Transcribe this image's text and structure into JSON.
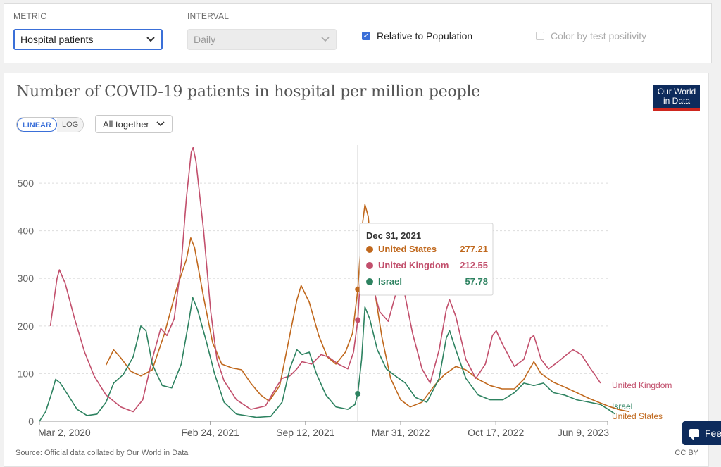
{
  "controls": {
    "metric_label": "METRIC",
    "metric_value": "Hospital patients",
    "interval_label": "INTERVAL",
    "interval_value": "Daily",
    "relative_label": "Relative to Population",
    "relative_checked": true,
    "positivity_label": "Color by test positivity",
    "positivity_checked": false
  },
  "header": {
    "title": "Number of COVID-19 patients in hospital per million people",
    "logo_line1": "Our World",
    "logo_line2": "in Data",
    "scale_linear": "LINEAR",
    "scale_log": "LOG",
    "grouping": "All together"
  },
  "colors": {
    "United States": "#c0681d",
    "United Kingdom": "#c24f6c",
    "Israel": "#2d8260",
    "grid": "#dddddd",
    "accent": "#3a6fd8"
  },
  "chart_data": {
    "type": "line",
    "title": "Number of COVID-19 patients in hospital per million people",
    "y_ticks": [
      0,
      100,
      200,
      300,
      400,
      500
    ],
    "ylim": [
      0,
      580
    ],
    "x_tick_labels": [
      "Mar 2, 2020",
      "Feb 24, 2021",
      "Sep 12, 2021",
      "Mar 31, 2022",
      "Oct 17, 2022",
      "Jun 9, 2023"
    ],
    "x_ticks": [
      "2020-03-02",
      "2021-02-24",
      "2021-09-12",
      "2022-03-31",
      "2022-10-17",
      "2023-06-09"
    ],
    "xlim": [
      "2020-03-02",
      "2023-06-09"
    ],
    "grid": "horizontal dashed",
    "series": [
      {
        "name": "United States",
        "points": [
          [
            "2020-07-20",
            118
          ],
          [
            "2020-08-05",
            150
          ],
          [
            "2020-08-20",
            133
          ],
          [
            "2020-09-10",
            105
          ],
          [
            "2020-10-01",
            95
          ],
          [
            "2020-10-25",
            108
          ],
          [
            "2020-11-20",
            185
          ],
          [
            "2020-12-15",
            278
          ],
          [
            "2021-01-05",
            340
          ],
          [
            "2021-01-14",
            385
          ],
          [
            "2021-01-22",
            365
          ],
          [
            "2021-02-10",
            260
          ],
          [
            "2021-03-01",
            165
          ],
          [
            "2021-03-20",
            120
          ],
          [
            "2021-04-10",
            112
          ],
          [
            "2021-05-01",
            108
          ],
          [
            "2021-05-20",
            80
          ],
          [
            "2021-06-10",
            55
          ],
          [
            "2021-06-28",
            42
          ],
          [
            "2021-07-20",
            75
          ],
          [
            "2021-08-10",
            180
          ],
          [
            "2021-08-25",
            255
          ],
          [
            "2021-09-03",
            285
          ],
          [
            "2021-09-20",
            250
          ],
          [
            "2021-10-10",
            180
          ],
          [
            "2021-10-28",
            135
          ],
          [
            "2021-11-15",
            120
          ],
          [
            "2021-12-05",
            145
          ],
          [
            "2021-12-20",
            185
          ],
          [
            "2021-12-31",
            277
          ],
          [
            "2022-01-08",
            400
          ],
          [
            "2022-01-15",
            455
          ],
          [
            "2022-01-22",
            430
          ],
          [
            "2022-02-05",
            270
          ],
          [
            "2022-02-20",
            175
          ],
          [
            "2022-03-10",
            90
          ],
          [
            "2022-03-31",
            45
          ],
          [
            "2022-04-20",
            30
          ],
          [
            "2022-05-15",
            40
          ],
          [
            "2022-06-10",
            75
          ],
          [
            "2022-07-01",
            98
          ],
          [
            "2022-07-25",
            115
          ],
          [
            "2022-08-15",
            108
          ],
          [
            "2022-09-10",
            88
          ],
          [
            "2022-10-05",
            75
          ],
          [
            "2022-10-30",
            68
          ],
          [
            "2022-11-25",
            68
          ],
          [
            "2022-12-15",
            88
          ],
          [
            "2023-01-05",
            125
          ],
          [
            "2023-01-20",
            100
          ],
          [
            "2023-02-15",
            82
          ],
          [
            "2023-03-10",
            72
          ],
          [
            "2023-04-05",
            60
          ],
          [
            "2023-05-01",
            48
          ],
          [
            "2023-05-25",
            38
          ],
          [
            "2023-06-15",
            30
          ],
          [
            "2023-07-05",
            24
          ],
          [
            "2023-07-25",
            20
          ]
        ]
      },
      {
        "name": "United Kingdom",
        "points": [
          [
            "2020-03-25",
            200
          ],
          [
            "2020-04-08",
            300
          ],
          [
            "2020-04-13",
            318
          ],
          [
            "2020-04-25",
            290
          ],
          [
            "2020-05-15",
            215
          ],
          [
            "2020-06-05",
            145
          ],
          [
            "2020-06-25",
            95
          ],
          [
            "2020-07-20",
            55
          ],
          [
            "2020-08-20",
            30
          ],
          [
            "2020-09-15",
            20
          ],
          [
            "2020-10-05",
            45
          ],
          [
            "2020-10-25",
            130
          ],
          [
            "2020-11-12",
            195
          ],
          [
            "2020-11-25",
            180
          ],
          [
            "2020-12-10",
            215
          ],
          [
            "2020-12-25",
            330
          ],
          [
            "2021-01-05",
            470
          ],
          [
            "2021-01-15",
            565
          ],
          [
            "2021-01-19",
            575
          ],
          [
            "2021-01-25",
            545
          ],
          [
            "2021-02-10",
            400
          ],
          [
            "2021-02-25",
            230
          ],
          [
            "2021-03-10",
            130
          ],
          [
            "2021-03-25",
            85
          ],
          [
            "2021-04-20",
            45
          ],
          [
            "2021-05-20",
            25
          ],
          [
            "2021-06-20",
            32
          ],
          [
            "2021-07-15",
            75
          ],
          [
            "2021-07-25",
            90
          ],
          [
            "2021-08-10",
            95
          ],
          [
            "2021-08-25",
            110
          ],
          [
            "2021-09-05",
            125
          ],
          [
            "2021-09-25",
            120
          ],
          [
            "2021-10-15",
            140
          ],
          [
            "2021-10-30",
            135
          ],
          [
            "2021-11-20",
            120
          ],
          [
            "2021-12-10",
            110
          ],
          [
            "2021-12-22",
            145
          ],
          [
            "2021-12-31",
            213
          ],
          [
            "2022-01-07",
            330
          ],
          [
            "2022-01-12",
            345
          ],
          [
            "2022-01-25",
            305
          ],
          [
            "2022-02-15",
            230
          ],
          [
            "2022-03-05",
            210
          ],
          [
            "2022-03-20",
            265
          ],
          [
            "2022-03-31",
            285
          ],
          [
            "2022-04-08",
            270
          ],
          [
            "2022-04-25",
            185
          ],
          [
            "2022-05-15",
            110
          ],
          [
            "2022-06-01",
            80
          ],
          [
            "2022-06-20",
            150
          ],
          [
            "2022-07-05",
            235
          ],
          [
            "2022-07-12",
            255
          ],
          [
            "2022-07-25",
            220
          ],
          [
            "2022-08-15",
            130
          ],
          [
            "2022-09-05",
            90
          ],
          [
            "2022-09-25",
            120
          ],
          [
            "2022-10-10",
            180
          ],
          [
            "2022-10-18",
            190
          ],
          [
            "2022-11-01",
            160
          ],
          [
            "2022-11-25",
            115
          ],
          [
            "2022-12-15",
            130
          ],
          [
            "2022-12-29",
            175
          ],
          [
            "2023-01-05",
            180
          ],
          [
            "2023-01-20",
            130
          ],
          [
            "2023-02-05",
            110
          ],
          [
            "2023-02-25",
            125
          ],
          [
            "2023-03-15",
            140
          ],
          [
            "2023-03-28",
            150
          ],
          [
            "2023-04-15",
            140
          ],
          [
            "2023-05-01",
            115
          ],
          [
            "2023-05-15",
            95
          ],
          [
            "2023-05-25",
            80
          ]
        ]
      },
      {
        "name": "Israel",
        "points": [
          [
            "2020-03-02",
            0
          ],
          [
            "2020-03-15",
            20
          ],
          [
            "2020-03-28",
            60
          ],
          [
            "2020-04-05",
            88
          ],
          [
            "2020-04-15",
            80
          ],
          [
            "2020-05-01",
            55
          ],
          [
            "2020-05-20",
            25
          ],
          [
            "2020-06-10",
            12
          ],
          [
            "2020-07-01",
            15
          ],
          [
            "2020-07-20",
            40
          ],
          [
            "2020-08-05",
            80
          ],
          [
            "2020-08-25",
            98
          ],
          [
            "2020-09-15",
            135
          ],
          [
            "2020-10-01",
            200
          ],
          [
            "2020-10-12",
            190
          ],
          [
            "2020-10-25",
            120
          ],
          [
            "2020-11-15",
            75
          ],
          [
            "2020-12-05",
            70
          ],
          [
            "2020-12-25",
            120
          ],
          [
            "2021-01-10",
            210
          ],
          [
            "2021-01-18",
            260
          ],
          [
            "2021-01-28",
            235
          ],
          [
            "2021-02-15",
            170
          ],
          [
            "2021-03-05",
            100
          ],
          [
            "2021-03-25",
            40
          ],
          [
            "2021-04-20",
            15
          ],
          [
            "2021-06-01",
            8
          ],
          [
            "2021-07-01",
            10
          ],
          [
            "2021-07-25",
            40
          ],
          [
            "2021-08-10",
            110
          ],
          [
            "2021-08-25",
            150
          ],
          [
            "2021-09-05",
            140
          ],
          [
            "2021-09-20",
            145
          ],
          [
            "2021-10-05",
            100
          ],
          [
            "2021-10-25",
            55
          ],
          [
            "2021-11-15",
            30
          ],
          [
            "2021-12-10",
            25
          ],
          [
            "2021-12-25",
            35
          ],
          [
            "2021-12-31",
            58
          ],
          [
            "2022-01-08",
            130
          ],
          [
            "2022-01-15",
            240
          ],
          [
            "2022-01-25",
            215
          ],
          [
            "2022-02-10",
            150
          ],
          [
            "2022-03-01",
            110
          ],
          [
            "2022-03-20",
            95
          ],
          [
            "2022-04-10",
            80
          ],
          [
            "2022-05-01",
            50
          ],
          [
            "2022-05-25",
            40
          ],
          [
            "2022-06-20",
            90
          ],
          [
            "2022-07-05",
            175
          ],
          [
            "2022-07-12",
            190
          ],
          [
            "2022-07-25",
            150
          ],
          [
            "2022-08-15",
            90
          ],
          [
            "2022-09-10",
            55
          ],
          [
            "2022-10-05",
            45
          ],
          [
            "2022-11-01",
            45
          ],
          [
            "2022-11-25",
            60
          ],
          [
            "2022-12-15",
            80
          ],
          [
            "2023-01-05",
            75
          ],
          [
            "2023-01-25",
            80
          ],
          [
            "2023-02-15",
            60
          ],
          [
            "2023-03-10",
            55
          ],
          [
            "2023-04-05",
            45
          ],
          [
            "2023-05-01",
            40
          ],
          [
            "2023-05-25",
            35
          ],
          [
            "2023-06-10",
            25
          ],
          [
            "2023-06-25",
            15
          ]
        ]
      }
    ],
    "hover": {
      "date": "2021-12-31",
      "label": "Dec 31, 2021",
      "values": [
        {
          "name": "United States",
          "value": "277.21"
        },
        {
          "name": "United Kingdom",
          "value": "212.55"
        },
        {
          "name": "Israel",
          "value": "57.78"
        }
      ]
    },
    "end_labels": [
      "United Kingdom",
      "Israel",
      "United States"
    ]
  },
  "footer": {
    "source": "Source: Official data collated by Our World in Data",
    "license": "CC BY",
    "feedback": "Fee"
  }
}
